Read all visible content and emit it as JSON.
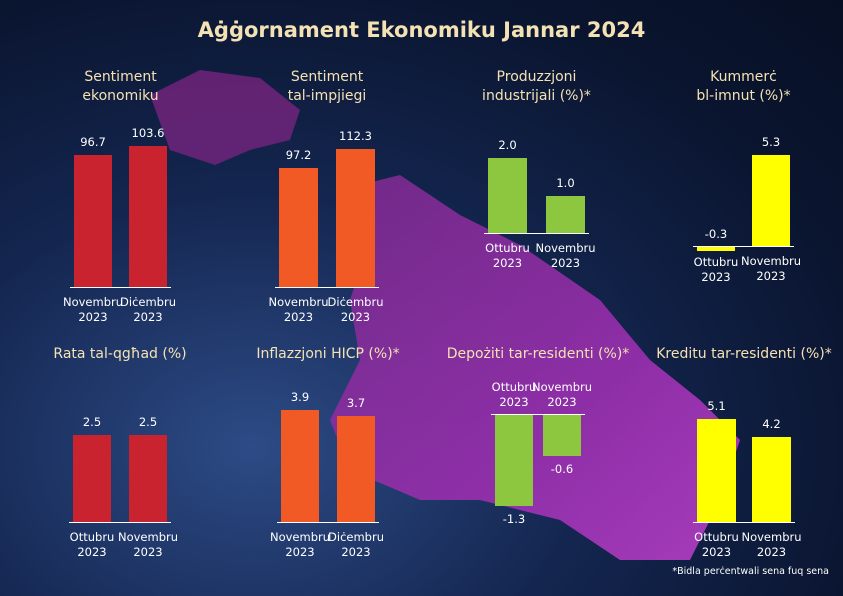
{
  "title": "Aġġornament Ekonomiku Jannar 2024",
  "footnote": "*Bidla perċentwali sena fuq sena",
  "chart_data": [
    {
      "type": "bar",
      "title": "Sentiment\nekonomiku",
      "categories": [
        "Novembru 2023",
        "Diċembru 2023"
      ],
      "values": [
        96.7,
        103.6
      ],
      "color": "#c8232f"
    },
    {
      "type": "bar",
      "title": "Sentiment\ntal-impjiegi",
      "categories": [
        "Novembru 2023",
        "Diċembru 2023"
      ],
      "values": [
        97.2,
        112.3
      ],
      "color": "#f15a24"
    },
    {
      "type": "bar",
      "title": "Produzzjoni\nindustrijali (%)*",
      "categories": [
        "Ottubru 2023",
        "Novembru 2023"
      ],
      "values": [
        2.0,
        1.0
      ],
      "value_labels": [
        "2.0",
        "1.0"
      ],
      "color": "#8dc63f"
    },
    {
      "type": "bar",
      "title": "Kummerċ\nbl-imnut (%)*",
      "categories": [
        "Ottubru 2023",
        "Novembru 2023"
      ],
      "values": [
        -0.3,
        5.3
      ],
      "color": "#ffff00"
    },
    {
      "type": "bar",
      "title": "Rata tal-qgħad (%)",
      "categories": [
        "Ottubru 2023",
        "Novembru 2023"
      ],
      "values": [
        2.5,
        2.5
      ],
      "color": "#c8232f"
    },
    {
      "type": "bar",
      "title": "Inflazzjoni HICP (%)*",
      "categories": [
        "Novembru 2023",
        "Diċembru 2023"
      ],
      "values": [
        3.9,
        3.7
      ],
      "color": "#f15a24"
    },
    {
      "type": "bar",
      "title": "Depożiti tar-residenti (%)*",
      "categories": [
        "Ottubru 2023",
        "Novembru 2023"
      ],
      "values": [
        -1.3,
        -0.6
      ],
      "color": "#8dc63f"
    },
    {
      "type": "bar",
      "title": "Kreditu tar-residenti (%)*",
      "categories": [
        "Ottubru 2023",
        "Novembru 2023"
      ],
      "values": [
        5.1,
        4.2
      ],
      "color": "#ffff00"
    }
  ]
}
